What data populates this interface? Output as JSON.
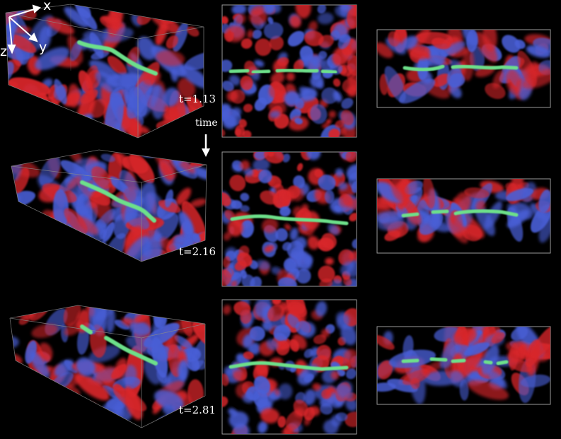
{
  "axes": {
    "x": "x",
    "y": "y",
    "z": "z"
  },
  "time_label": "time",
  "rows": [
    {
      "time": "t=1.13"
    },
    {
      "time": "t=2.16"
    },
    {
      "time": "t=2.81"
    }
  ],
  "colors": {
    "background": "#000000",
    "positive": "#d8262a",
    "negative": "#4a5fd6",
    "tube": "#6de08a",
    "box_edge": "#8a8a8a"
  }
}
